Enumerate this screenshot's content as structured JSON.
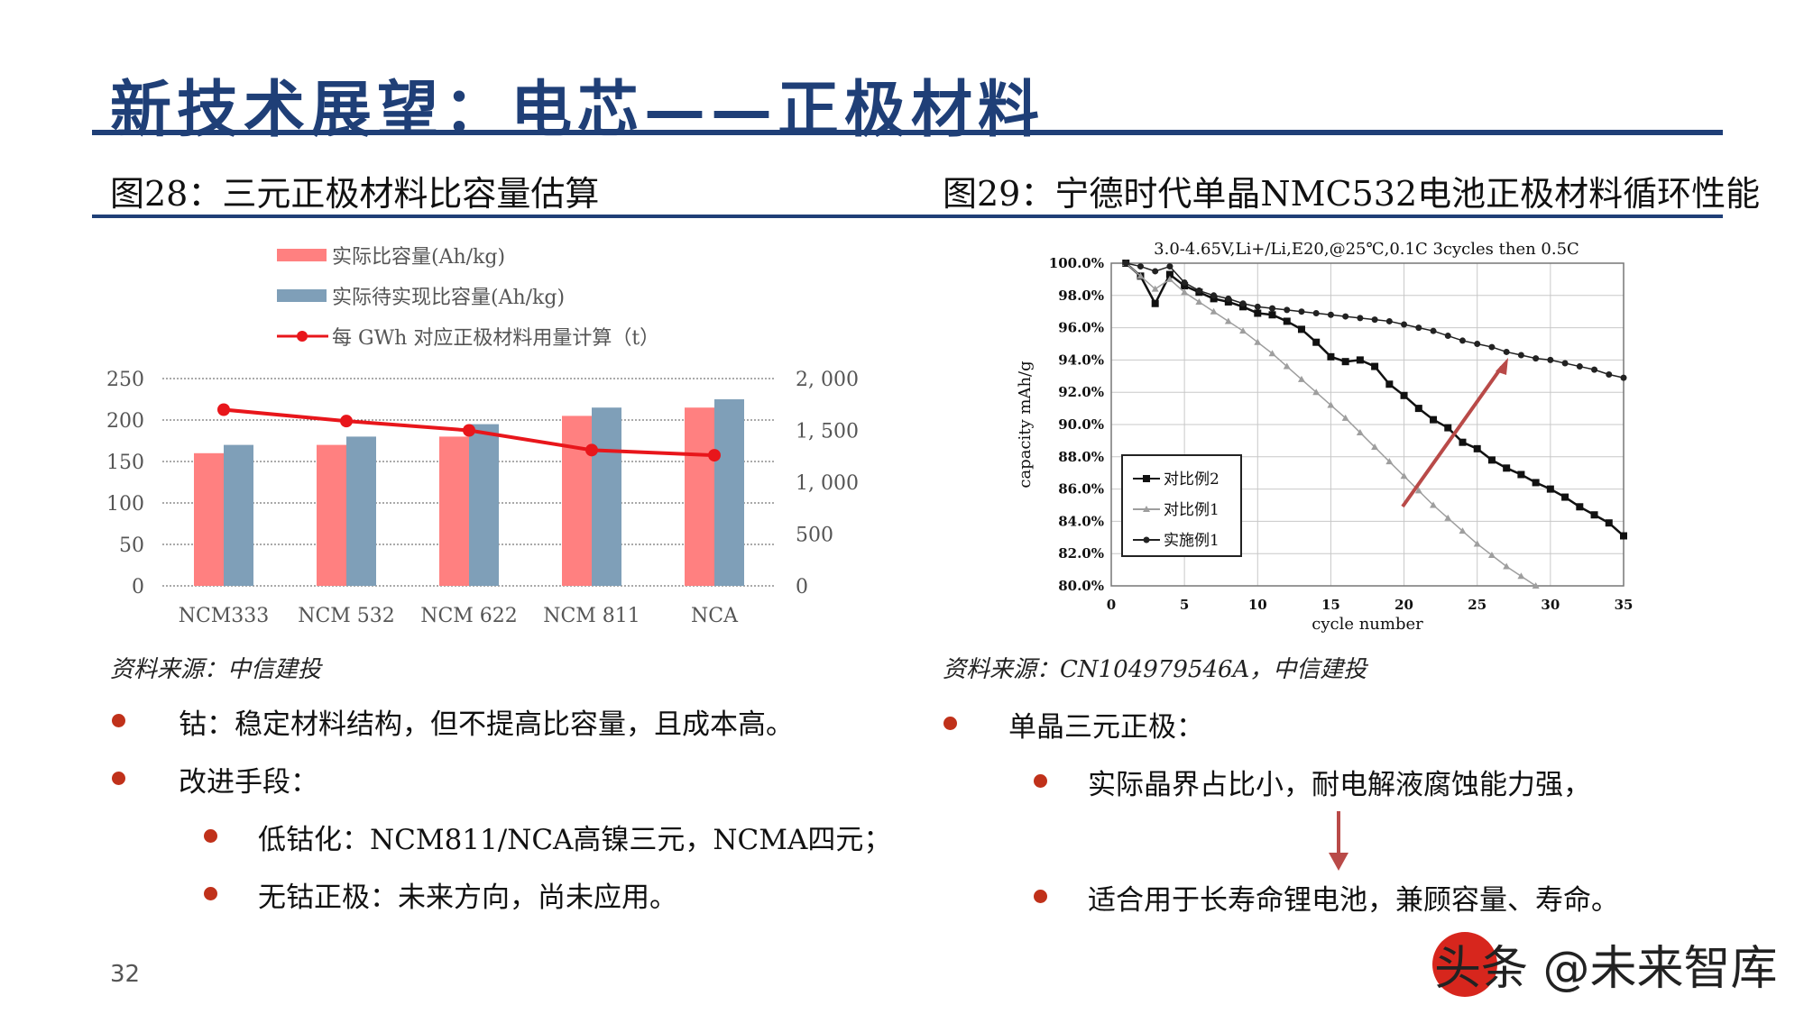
{
  "page": {
    "title": "新技术展望：电芯——正极材料",
    "left_figure_title": "图28：三元正极材料比容量估算",
    "right_figure_title": "图29：宁德时代单晶NMC532电池正极材料循环性能",
    "left_source": "资料来源：中信建投",
    "right_source": "资料来源：CN104979546A，中信建投",
    "page_number": "32",
    "watermark": "头条 @未来智库"
  },
  "bullets_left": [
    {
      "level": 1,
      "text": "钴：稳定材料结构，但不提高比容量，且成本高。"
    },
    {
      "level": 1,
      "text": "改进手段："
    },
    {
      "level": 2,
      "text": "低钴化：NCM811/NCA高镍三元，NCMA四元；"
    },
    {
      "level": 2,
      "text": "无钴正极：未来方向，尚未应用。"
    }
  ],
  "bullets_right": [
    {
      "level": 1,
      "text": "单晶三元正极："
    },
    {
      "level": 2,
      "text": "实际晶界占比小，耐电解液腐蚀能力强，"
    },
    {
      "level": 2,
      "text": "适合用于长寿命锂电池，兼顾容量、寿命。"
    }
  ],
  "colors": {
    "title_blue": "#1f3f77",
    "bar_pink": "#ff8080",
    "bar_blue": "#7f9fb8",
    "line_red": "#e8161b",
    "bullet_red": "#c0311a",
    "arrow_red": "#b94a48"
  },
  "chart_data": [
    {
      "type": "bar",
      "categories": [
        "NCM333",
        "NCM 532",
        "NCM 622",
        "NCM 811",
        "NCA"
      ],
      "series": [
        {
          "name": "实际比容量(Ah/kg)",
          "kind": "bar",
          "axis": "left",
          "values": [
            160,
            170,
            180,
            205,
            215
          ]
        },
        {
          "name": "实际待实现比容量(Ah/kg)",
          "kind": "bar",
          "axis": "left",
          "values": [
            170,
            180,
            195,
            215,
            225
          ]
        },
        {
          "name": "每 GWh 对应正极材料用量计算（t）",
          "kind": "line",
          "axis": "right",
          "values": [
            1700,
            1590,
            1500,
            1310,
            1260
          ]
        }
      ],
      "y_left": {
        "min": 0,
        "max": 250,
        "ticks": [
          "0",
          "50",
          "100",
          "150",
          "200",
          "250"
        ],
        "tick_values": [
          0,
          50,
          100,
          150,
          200,
          250
        ]
      },
      "y_right": {
        "min": 0,
        "max": 2000,
        "ticks": [
          "0",
          "500",
          "1, 000",
          "1, 500",
          "2, 000"
        ],
        "tick_values": [
          0,
          500,
          1000,
          1500,
          2000
        ]
      },
      "grid": true,
      "legend": "top-left"
    },
    {
      "type": "line",
      "title": "3.0-4.65V,Li+/Li,E20,@25℃,0.1C  3cycles then 0.5C",
      "xlabel": "cycle number",
      "ylabel": "capacity mAh/g",
      "xlim": [
        0,
        35
      ],
      "ylim": [
        80,
        100
      ],
      "x_ticks": [
        "0",
        "5",
        "10",
        "15",
        "20",
        "25",
        "30",
        "35"
      ],
      "x_tick_values": [
        0,
        5,
        10,
        15,
        20,
        25,
        30,
        35
      ],
      "y_ticks": [
        "80.0%",
        "82.0%",
        "84.0%",
        "86.0%",
        "88.0%",
        "90.0%",
        "92.0%",
        "94.0%",
        "96.0%",
        "98.0%",
        "100.0%"
      ],
      "y_tick_values": [
        80,
        82,
        84,
        86,
        88,
        90,
        92,
        94,
        96,
        98,
        100
      ],
      "grid": true,
      "legend": "bottom-left",
      "series": [
        {
          "name": "对比例2",
          "marker": "square",
          "x": [
            1,
            2,
            3,
            4,
            5,
            6,
            7,
            8,
            9,
            10,
            11,
            12,
            13,
            14,
            15,
            16,
            17,
            18,
            19,
            20,
            21,
            22,
            23,
            24,
            25,
            26,
            27,
            28,
            29,
            30,
            31,
            32,
            33,
            34,
            35
          ],
          "y": [
            100,
            99.2,
            97.5,
            99.3,
            98.6,
            98.2,
            97.8,
            97.6,
            97.3,
            96.9,
            96.8,
            96.4,
            95.9,
            95.1,
            94.2,
            93.9,
            94.0,
            93.6,
            92.5,
            91.8,
            91.0,
            90.3,
            89.8,
            88.9,
            88.5,
            87.8,
            87.3,
            86.9,
            86.4,
            86.0,
            85.5,
            84.9,
            84.4,
            83.9,
            83.1
          ]
        },
        {
          "name": "对比例1",
          "marker": "triangle",
          "x": [
            1,
            2,
            3,
            4,
            5,
            6,
            7,
            8,
            9,
            10,
            11,
            12,
            13,
            14,
            15,
            16,
            17,
            18,
            19,
            20,
            21,
            22,
            23,
            24,
            25,
            26,
            27,
            28,
            29
          ],
          "y": [
            100,
            99.2,
            98.4,
            99.0,
            98.2,
            97.6,
            97.0,
            96.4,
            95.8,
            95.1,
            94.4,
            93.6,
            92.8,
            92.0,
            91.2,
            90.4,
            89.5,
            88.6,
            87.7,
            86.8,
            85.9,
            85.0,
            84.2,
            83.4,
            82.6,
            81.9,
            81.2,
            80.6,
            80.0
          ]
        },
        {
          "name": "实施例1",
          "marker": "diamond",
          "x": [
            1,
            2,
            3,
            4,
            5,
            6,
            7,
            8,
            9,
            10,
            11,
            12,
            13,
            14,
            15,
            16,
            17,
            18,
            19,
            20,
            21,
            22,
            23,
            24,
            25,
            26,
            27,
            28,
            29,
            30,
            31,
            32,
            33,
            34,
            35
          ],
          "y": [
            100,
            99.8,
            99.5,
            99.8,
            98.8,
            98.3,
            98.0,
            97.8,
            97.5,
            97.3,
            97.2,
            97.1,
            97.0,
            96.9,
            96.8,
            96.7,
            96.6,
            96.5,
            96.4,
            96.2,
            96.0,
            95.8,
            95.5,
            95.2,
            95.0,
            94.8,
            94.5,
            94.3,
            94.1,
            94.0,
            93.8,
            93.6,
            93.4,
            93.1,
            92.9
          ]
        }
      ]
    }
  ]
}
